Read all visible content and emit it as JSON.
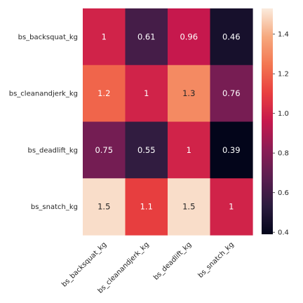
{
  "chart_data": {
    "type": "heatmap",
    "title": "",
    "xlabel": "",
    "ylabel": "",
    "x_categories": [
      "bs_backsquat_kg",
      "bs_cleanandjerk_kg",
      "bs_deadlift_kg",
      "bs_snatch_kg"
    ],
    "y_categories": [
      "bs_backsquat_kg",
      "bs_cleanandjerk_kg",
      "bs_deadlift_kg",
      "bs_snatch_kg"
    ],
    "values": [
      [
        1,
        0.61,
        0.96,
        0.46
      ],
      [
        1.2,
        1,
        1.3,
        0.76
      ],
      [
        0.75,
        0.55,
        1,
        0.39
      ],
      [
        1.5,
        1.1,
        1.5,
        1
      ]
    ],
    "cell_labels": [
      [
        "1",
        "0.61",
        "0.96",
        "0.46"
      ],
      [
        "1.2",
        "1",
        "1.3",
        "0.76"
      ],
      [
        "0.75",
        "0.55",
        "1",
        "0.39"
      ],
      [
        "1.5",
        "1.1",
        "1.5",
        "1"
      ]
    ],
    "colorbar": {
      "min": 0.39,
      "max": 1.53,
      "ticks": [
        0.4,
        0.6,
        0.8,
        1.0,
        1.2,
        1.4
      ],
      "tick_labels": [
        "0.4",
        "0.6",
        "0.8",
        "1.0",
        "1.2",
        "1.4"
      ]
    },
    "colormap": "rocket",
    "colormap_stops": [
      "#03051a",
      "#2b1c3e",
      "#5a1e50",
      "#8b1d55",
      "#c6184d",
      "#e83f3f",
      "#f37651",
      "#f6a97e",
      "#faebdd"
    ],
    "grid": false,
    "legend": "colorbar-right"
  }
}
